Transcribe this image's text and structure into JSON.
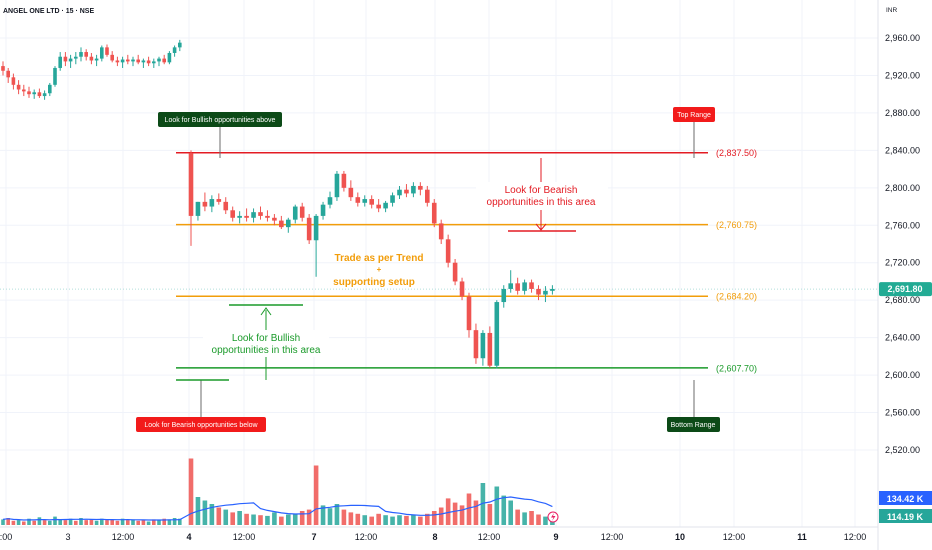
{
  "symbol_title": "ANGEL ONE LTD · 15 · NSE",
  "currency": "INR",
  "colors": {
    "bull": "#26a69a",
    "bear": "#ef5350",
    "red_line": "#e31b23",
    "orange": "#f29d0a",
    "green": "#1a9a2a",
    "dark_green_badge": "#0c4a17",
    "red_badge": "#f21b1b",
    "price_tag": "#22ab94",
    "vol_avg": "#2962ff",
    "grid": "#f0f3fa",
    "axis_text": "#131722"
  },
  "levels": [
    {
      "value": 2837.5,
      "label": "(2,837.50)",
      "kind": "top"
    },
    {
      "value": 2760.75,
      "label": "(2,760.75)",
      "kind": "mid_upper"
    },
    {
      "value": 2684.2,
      "label": "(2,684.20)",
      "kind": "mid_lower"
    },
    {
      "value": 2607.7,
      "label": "(2,607.70)",
      "kind": "bottom"
    }
  ],
  "badges": {
    "bullish_above": "Look for Bullish opportunities above",
    "top_range": "Top Range",
    "bearish_below": "Look for Bearish opportunities below",
    "bottom_range": "Bottom Range"
  },
  "notes": {
    "bearish_area_line1": "Look for Bearish",
    "bearish_area_line2": "opportunities in this area",
    "trend_line1": "Trade as per Trend",
    "trend_line2": "+",
    "trend_line3": "supporting setup",
    "bullish_area_line1": "Look for Bullish",
    "bullish_area_line2": "opportunities in this area"
  },
  "current_price": "2,691.80",
  "volume_tags": [
    "134.42 K",
    "114.19 K"
  ],
  "chart_data": {
    "type": "candlestick",
    "ylim": [
      2480,
      2980
    ],
    "y_ticks": [
      2960,
      2920,
      2880,
      2840,
      2800,
      2760,
      2720,
      2680,
      2640,
      2600,
      2560,
      2520
    ],
    "y_tick_labels": [
      "2,960.00",
      "2,920.00",
      "2,880.00",
      "2,840.00",
      "2,800.00",
      "2,760.00",
      "2,720.00",
      "2,680.00",
      "2,640.00",
      "2,600.00",
      "2,560.00",
      "2,520.00"
    ],
    "x_tick_labels": [
      ":00",
      "3",
      "12:00",
      "4",
      "12:00",
      "7",
      "12:00",
      "8",
      "12:00",
      "9",
      "12:00",
      "10",
      "12:00",
      "11",
      "12:00"
    ],
    "x_tick_bold": [
      false,
      false,
      false,
      true,
      false,
      true,
      false,
      true,
      false,
      true,
      false,
      true,
      false,
      true,
      false
    ],
    "candles": [
      [
        2930,
        2935,
        2920,
        2925
      ],
      [
        2925,
        2928,
        2912,
        2918
      ],
      [
        2918,
        2922,
        2905,
        2910
      ],
      [
        2910,
        2915,
        2900,
        2905
      ],
      [
        2905,
        2910,
        2898,
        2903
      ],
      [
        2903,
        2908,
        2896,
        2900
      ],
      [
        2900,
        2905,
        2895,
        2902
      ],
      [
        2902,
        2906,
        2896,
        2898
      ],
      [
        2898,
        2904,
        2894,
        2901
      ],
      [
        2901,
        2912,
        2898,
        2910
      ],
      [
        2910,
        2930,
        2908,
        2928
      ],
      [
        2928,
        2945,
        2925,
        2940
      ],
      [
        2940,
        2945,
        2930,
        2935
      ],
      [
        2935,
        2942,
        2928,
        2938
      ],
      [
        2938,
        2945,
        2932,
        2940
      ],
      [
        2940,
        2950,
        2935,
        2945
      ],
      [
        2945,
        2948,
        2936,
        2940
      ],
      [
        2940,
        2944,
        2932,
        2936
      ],
      [
        2936,
        2942,
        2930,
        2938
      ],
      [
        2938,
        2952,
        2935,
        2950
      ],
      [
        2950,
        2953,
        2940,
        2942
      ],
      [
        2942,
        2946,
        2934,
        2936
      ],
      [
        2936,
        2940,
        2930,
        2934
      ],
      [
        2934,
        2940,
        2928,
        2937
      ],
      [
        2937,
        2942,
        2932,
        2935
      ],
      [
        2935,
        2940,
        2930,
        2937
      ],
      [
        2937,
        2942,
        2932,
        2934
      ],
      [
        2934,
        2938,
        2928,
        2936
      ],
      [
        2936,
        2940,
        2930,
        2933
      ],
      [
        2933,
        2938,
        2928,
        2935
      ],
      [
        2935,
        2940,
        2930,
        2938
      ],
      [
        2938,
        2942,
        2932,
        2934
      ],
      [
        2934,
        2946,
        2932,
        2944
      ],
      [
        2944,
        2952,
        2940,
        2950
      ],
      [
        2950,
        2958,
        2946,
        2955
      ],
      [
        2837,
        2840,
        2738,
        2770
      ],
      [
        2770,
        2785,
        2765,
        2785
      ],
      [
        2785,
        2795,
        2775,
        2780
      ],
      [
        2780,
        2792,
        2774,
        2788
      ],
      [
        2788,
        2794,
        2782,
        2785
      ],
      [
        2785,
        2790,
        2772,
        2776
      ],
      [
        2776,
        2780,
        2764,
        2768
      ],
      [
        2768,
        2775,
        2762,
        2770
      ],
      [
        2770,
        2778,
        2764,
        2768
      ],
      [
        2768,
        2778,
        2763,
        2774
      ],
      [
        2774,
        2780,
        2766,
        2770
      ],
      [
        2770,
        2776,
        2764,
        2768
      ],
      [
        2768,
        2772,
        2760,
        2765
      ],
      [
        2765,
        2770,
        2756,
        2758
      ],
      [
        2758,
        2768,
        2752,
        2766
      ],
      [
        2766,
        2782,
        2762,
        2780
      ],
      [
        2780,
        2784,
        2764,
        2768
      ],
      [
        2768,
        2772,
        2740,
        2744
      ],
      [
        2744,
        2772,
        2705,
        2770
      ],
      [
        2770,
        2785,
        2766,
        2782
      ],
      [
        2782,
        2796,
        2778,
        2790
      ],
      [
        2790,
        2818,
        2786,
        2815
      ],
      [
        2815,
        2818,
        2796,
        2800
      ],
      [
        2800,
        2808,
        2786,
        2790
      ],
      [
        2790,
        2795,
        2780,
        2784
      ],
      [
        2784,
        2792,
        2780,
        2788
      ],
      [
        2788,
        2792,
        2778,
        2782
      ],
      [
        2782,
        2788,
        2774,
        2778
      ],
      [
        2778,
        2786,
        2774,
        2784
      ],
      [
        2784,
        2795,
        2780,
        2792
      ],
      [
        2792,
        2802,
        2788,
        2798
      ],
      [
        2798,
        2804,
        2790,
        2794
      ],
      [
        2794,
        2806,
        2790,
        2802
      ],
      [
        2802,
        2806,
        2792,
        2798
      ],
      [
        2798,
        2802,
        2780,
        2784
      ],
      [
        2784,
        2788,
        2758,
        2762
      ],
      [
        2762,
        2766,
        2740,
        2745
      ],
      [
        2745,
        2750,
        2715,
        2720
      ],
      [
        2720,
        2724,
        2696,
        2700
      ],
      [
        2700,
        2704,
        2680,
        2684
      ],
      [
        2684,
        2688,
        2640,
        2648
      ],
      [
        2648,
        2655,
        2612,
        2618
      ],
      [
        2618,
        2648,
        2610,
        2645
      ],
      [
        2645,
        2652,
        2608,
        2610
      ],
      [
        2610,
        2680,
        2607,
        2678
      ],
      [
        2678,
        2696,
        2672,
        2692
      ],
      [
        2692,
        2712,
        2688,
        2698
      ],
      [
        2698,
        2704,
        2686,
        2690
      ],
      [
        2690,
        2702,
        2686,
        2699
      ],
      [
        2699,
        2702,
        2688,
        2692
      ],
      [
        2692,
        2696,
        2680,
        2686
      ],
      [
        2686,
        2695,
        2678,
        2690
      ],
      [
        2690,
        2696,
        2686,
        2692
      ]
    ],
    "volumes": [
      [
        8,
        1
      ],
      [
        10,
        0
      ],
      [
        6,
        0
      ],
      [
        7,
        1
      ],
      [
        5,
        0
      ],
      [
        9,
        1
      ],
      [
        6,
        0
      ],
      [
        11,
        1
      ],
      [
        7,
        0
      ],
      [
        6,
        1
      ],
      [
        12,
        1
      ],
      [
        8,
        1
      ],
      [
        7,
        0
      ],
      [
        9,
        1
      ],
      [
        6,
        0
      ],
      [
        10,
        1
      ],
      [
        7,
        0
      ],
      [
        8,
        0
      ],
      [
        6,
        1
      ],
      [
        9,
        1
      ],
      [
        7,
        0
      ],
      [
        8,
        0
      ],
      [
        6,
        0
      ],
      [
        9,
        1
      ],
      [
        7,
        0
      ],
      [
        8,
        1
      ],
      [
        6,
        0
      ],
      [
        7,
        0
      ],
      [
        5,
        1
      ],
      [
        8,
        0
      ],
      [
        7,
        1
      ],
      [
        9,
        0
      ],
      [
        8,
        1
      ],
      [
        10,
        1
      ],
      [
        9,
        1
      ],
      [
        95,
        0
      ],
      [
        40,
        1
      ],
      [
        35,
        1
      ],
      [
        30,
        1
      ],
      [
        25,
        0
      ],
      [
        22,
        1
      ],
      [
        18,
        0
      ],
      [
        20,
        1
      ],
      [
        16,
        0
      ],
      [
        15,
        1
      ],
      [
        14,
        0
      ],
      [
        13,
        1
      ],
      [
        18,
        1
      ],
      [
        12,
        0
      ],
      [
        15,
        1
      ],
      [
        16,
        1
      ],
      [
        20,
        0
      ],
      [
        22,
        0
      ],
      [
        85,
        0
      ],
      [
        28,
        1
      ],
      [
        24,
        1
      ],
      [
        30,
        1
      ],
      [
        22,
        0
      ],
      [
        18,
        0
      ],
      [
        16,
        0
      ],
      [
        14,
        1
      ],
      [
        12,
        0
      ],
      [
        16,
        0
      ],
      [
        14,
        1
      ],
      [
        12,
        1
      ],
      [
        14,
        1
      ],
      [
        13,
        0
      ],
      [
        15,
        1
      ],
      [
        12,
        0
      ],
      [
        16,
        0
      ],
      [
        20,
        0
      ],
      [
        25,
        0
      ],
      [
        38,
        0
      ],
      [
        32,
        0
      ],
      [
        28,
        0
      ],
      [
        45,
        0
      ],
      [
        35,
        0
      ],
      [
        60,
        1
      ],
      [
        30,
        0
      ],
      [
        55,
        1
      ],
      [
        42,
        1
      ],
      [
        35,
        1
      ],
      [
        22,
        0
      ],
      [
        18,
        1
      ],
      [
        20,
        0
      ],
      [
        15,
        0
      ],
      [
        12,
        1
      ],
      [
        14,
        1
      ]
    ]
  }
}
